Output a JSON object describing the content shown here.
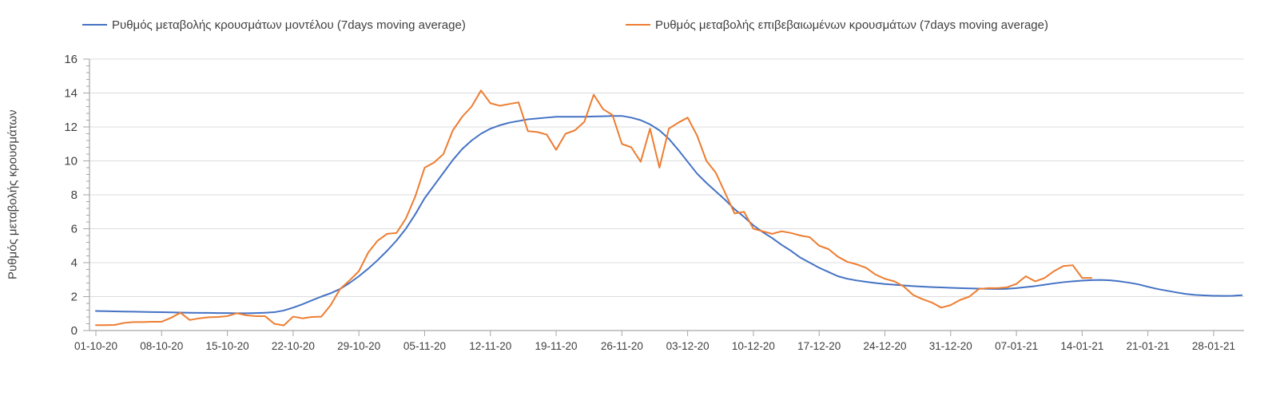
{
  "y_axis": {
    "label": "Ρυθμός μεταβολής κρουσμάτων",
    "ticks": [
      0,
      2,
      4,
      6,
      8,
      10,
      12,
      14,
      16
    ]
  },
  "x_axis": {
    "tick_labels": [
      "01-10-20",
      "08-10-20",
      "15-10-20",
      "22-10-20",
      "29-10-20",
      "05-11-20",
      "12-11-20",
      "19-11-20",
      "26-11-20",
      "03-12-20",
      "10-12-20",
      "17-12-20",
      "24-12-20",
      "31-12-20",
      "07-01-21",
      "14-01-21",
      "21-01-21",
      "28-01-21"
    ]
  },
  "chart_data": {
    "type": "line",
    "title": "",
    "xlabel": "",
    "ylabel": "Ρυθμός μεταβολής κρουσμάτων",
    "ylim": [
      0,
      16
    ],
    "y_major_step": 2,
    "grid": "horizontal-only",
    "legend_position": "top",
    "x_start_date": "01-10-20",
    "x_unit": "day",
    "x_tick_every_days": 7,
    "colors": {
      "axis": "#a6a6a6",
      "gridline": "#dcdcdc",
      "tick_text": "#3f3f3f"
    },
    "series": [
      {
        "name": "Ρυθμός μεταβολής κρουσμάτων μοντέλου (7days moving average)",
        "color": "#4472C4",
        "start_day": 0,
        "values": [
          1.15,
          1.14,
          1.13,
          1.12,
          1.11,
          1.1,
          1.09,
          1.08,
          1.07,
          1.06,
          1.05,
          1.04,
          1.04,
          1.03,
          1.03,
          1.02,
          1.02,
          1.03,
          1.05,
          1.08,
          1.18,
          1.35,
          1.55,
          1.78,
          2.0,
          2.2,
          2.45,
          2.8,
          3.2,
          3.65,
          4.15,
          4.7,
          5.3,
          6.0,
          6.85,
          7.8,
          8.55,
          9.3,
          10.05,
          10.7,
          11.2,
          11.6,
          11.9,
          12.1,
          12.25,
          12.35,
          12.45,
          12.5,
          12.55,
          12.6,
          12.6,
          12.6,
          12.6,
          12.62,
          12.63,
          12.65,
          12.65,
          12.55,
          12.4,
          12.15,
          11.8,
          11.3,
          10.65,
          9.95,
          9.25,
          8.7,
          8.2,
          7.7,
          7.15,
          6.7,
          6.2,
          5.8,
          5.45,
          5.05,
          4.7,
          4.3,
          4.0,
          3.7,
          3.45,
          3.2,
          3.05,
          2.95,
          2.87,
          2.8,
          2.74,
          2.7,
          2.66,
          2.62,
          2.59,
          2.56,
          2.54,
          2.52,
          2.5,
          2.48,
          2.47,
          2.46,
          2.45,
          2.46,
          2.5,
          2.56,
          2.62,
          2.7,
          2.78,
          2.85,
          2.9,
          2.94,
          2.97,
          2.98,
          2.96,
          2.9,
          2.82,
          2.72,
          2.58,
          2.45,
          2.35,
          2.25,
          2.16,
          2.1,
          2.07,
          2.05,
          2.04,
          2.05,
          2.08
        ]
      },
      {
        "name": "Ρυθμός μεταβολής επιβεβαιωμένων κρουσμάτων (7days moving average)",
        "color": "#ED7D31",
        "start_day": 0,
        "values": [
          0.32,
          0.32,
          0.33,
          0.45,
          0.5,
          0.5,
          0.52,
          0.52,
          0.75,
          1.05,
          0.62,
          0.72,
          0.78,
          0.8,
          0.85,
          1.02,
          0.9,
          0.85,
          0.85,
          0.4,
          0.3,
          0.82,
          0.72,
          0.8,
          0.82,
          1.5,
          2.45,
          2.95,
          3.5,
          4.6,
          5.3,
          5.7,
          5.75,
          6.6,
          7.9,
          9.6,
          9.9,
          10.4,
          11.8,
          12.6,
          13.2,
          14.15,
          13.4,
          13.25,
          13.35,
          13.45,
          11.75,
          11.7,
          11.55,
          10.65,
          11.6,
          11.8,
          12.3,
          13.9,
          13.05,
          12.7,
          11.0,
          10.8,
          9.95,
          11.9,
          9.6,
          11.9,
          12.25,
          12.55,
          11.5,
          10.0,
          9.3,
          8.1,
          6.9,
          7.0,
          6.0,
          5.85,
          5.7,
          5.85,
          5.75,
          5.6,
          5.5,
          5.0,
          4.8,
          4.35,
          4.05,
          3.9,
          3.7,
          3.3,
          3.05,
          2.9,
          2.6,
          2.1,
          1.85,
          1.65,
          1.35,
          1.5,
          1.8,
          2.0,
          2.45,
          2.5,
          2.5,
          2.55,
          2.75,
          3.2,
          2.9,
          3.1,
          3.5,
          3.8,
          3.85,
          3.1,
          3.1
        ]
      }
    ]
  }
}
